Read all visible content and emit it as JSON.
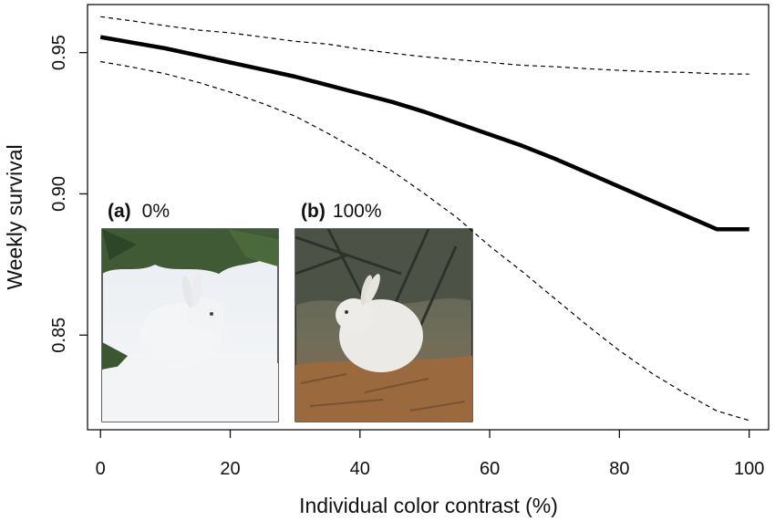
{
  "chart_data": {
    "type": "line",
    "xlabel": "Individual color contrast (%)",
    "ylabel": "Weekly survival",
    "xlim": [
      -2,
      103
    ],
    "ylim": [
      0.8165,
      0.967
    ],
    "xticks": [
      0,
      20,
      40,
      60,
      80,
      100
    ],
    "xtick_labels": [
      "0",
      "20",
      "40",
      "60",
      "80",
      "100"
    ],
    "yticks": [
      0.85,
      0.9,
      0.95
    ],
    "ytick_labels": [
      "0.85",
      "0.90",
      "0.95"
    ],
    "grid": false,
    "series": [
      {
        "style": "solid-thick",
        "x": [
          0,
          5,
          10,
          15,
          20,
          25,
          30,
          35,
          40,
          45,
          50,
          55,
          60,
          65,
          70,
          75,
          80,
          85,
          90,
          95,
          100
        ],
        "y": [
          0.9555,
          0.9535,
          0.9515,
          0.949,
          0.9465,
          0.944,
          0.9415,
          0.9385,
          0.9355,
          0.9325,
          0.929,
          0.925,
          0.921,
          0.917,
          0.9125,
          0.9075,
          0.9025,
          0.8975,
          0.8925,
          0.8875,
          0.8875
        ]
      },
      {
        "style": "dashed-upper",
        "x": [
          0,
          5,
          10,
          15,
          20,
          25,
          30,
          35,
          40,
          45,
          50,
          55,
          60,
          65,
          70,
          75,
          80,
          85,
          90,
          95,
          100
        ],
        "y": [
          0.9627,
          0.9612,
          0.9595,
          0.958,
          0.957,
          0.9555,
          0.954,
          0.953,
          0.9512,
          0.9498,
          0.9485,
          0.9475,
          0.9465,
          0.9455,
          0.945,
          0.9443,
          0.9437,
          0.9432,
          0.943,
          0.9425,
          0.9424
        ]
      },
      {
        "style": "dashed-lower",
        "x": [
          0,
          5,
          10,
          15,
          20,
          25,
          30,
          35,
          40,
          45,
          50,
          55,
          60,
          65,
          70,
          75,
          80,
          85,
          90,
          95,
          100
        ],
        "y": [
          0.9468,
          0.9448,
          0.9425,
          0.9395,
          0.936,
          0.932,
          0.9275,
          0.9215,
          0.915,
          0.908,
          0.9,
          0.8915,
          0.8815,
          0.8725,
          0.863,
          0.8535,
          0.8445,
          0.8365,
          0.8295,
          0.8232,
          0.8198
        ]
      }
    ],
    "insets": [
      {
        "tag": "(a)",
        "label": "0%",
        "description": "white hare on snow"
      },
      {
        "tag": "(b)",
        "label": "100%",
        "description": "white hare on brown ground"
      }
    ]
  }
}
